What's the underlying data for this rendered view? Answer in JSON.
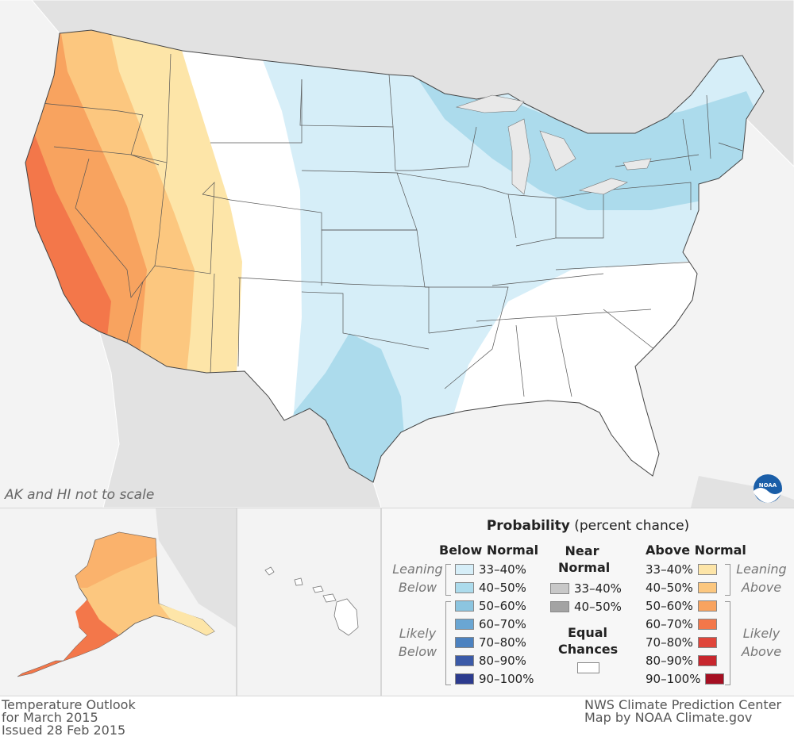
{
  "map": {
    "scale_note": "AK and HI not to scale"
  },
  "legend": {
    "title_bold": "Probability",
    "title_rest": " (percent chance)",
    "below": {
      "heading": "Below Normal",
      "rows": [
        {
          "label": "33–40%",
          "color": "#d6eef8"
        },
        {
          "label": "40–50%",
          "color": "#acdbec"
        },
        {
          "label": "50–60%",
          "color": "#8cc5e0"
        },
        {
          "label": "60–70%",
          "color": "#6aa6d3"
        },
        {
          "label": "70–80%",
          "color": "#4c82c0"
        },
        {
          "label": "80–90%",
          "color": "#3b5aa8"
        },
        {
          "label": "90–100%",
          "color": "#2c3b8e"
        }
      ],
      "leaning": [
        "Leaning",
        "Below"
      ],
      "likely": [
        "Likely",
        "Below"
      ]
    },
    "near": {
      "heading": [
        "Near",
        "Normal"
      ],
      "rows": [
        {
          "label": "33–40%",
          "color": "#c8c8c8"
        },
        {
          "label": "40–50%",
          "color": "#a3a3a3"
        }
      ]
    },
    "equal": {
      "heading": [
        "Equal",
        "Chances"
      ],
      "color": "#ffffff"
    },
    "above": {
      "heading": "Above Normal",
      "rows": [
        {
          "label": "33–40%",
          "color": "#fde5a8"
        },
        {
          "label": "40–50%",
          "color": "#fcc77f"
        },
        {
          "label": "50–60%",
          "color": "#f8a35f"
        },
        {
          "label": "60–70%",
          "color": "#f3774a"
        },
        {
          "label": "70–80%",
          "color": "#e0453a"
        },
        {
          "label": "80–90%",
          "color": "#c7262d"
        },
        {
          "label": "90–100%",
          "color": "#a50f22"
        }
      ],
      "leaning": [
        "Leaning",
        "Above"
      ],
      "likely": [
        "Likely",
        "Above"
      ]
    }
  },
  "footer": {
    "left": [
      "Temperature Outlook",
      "for March 2015",
      "Issued 28 Feb 2015"
    ],
    "right": [
      "NWS Climate Prediction Center",
      "Map by NOAA Climate.gov"
    ]
  },
  "logo": {
    "text": "NOAA"
  }
}
